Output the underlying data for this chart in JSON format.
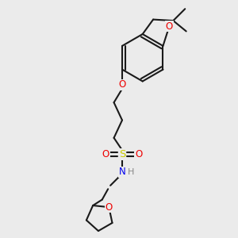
{
  "bg_color": "#ebebeb",
  "bond_color": "#1a1a1a",
  "bond_lw": 1.5,
  "atom_colors": {
    "O": "#ee0000",
    "S": "#cccc00",
    "N": "#0000ee",
    "H": "#888888"
  },
  "fs": 8.5,
  "figsize": [
    3.0,
    3.0
  ],
  "dpi": 100
}
